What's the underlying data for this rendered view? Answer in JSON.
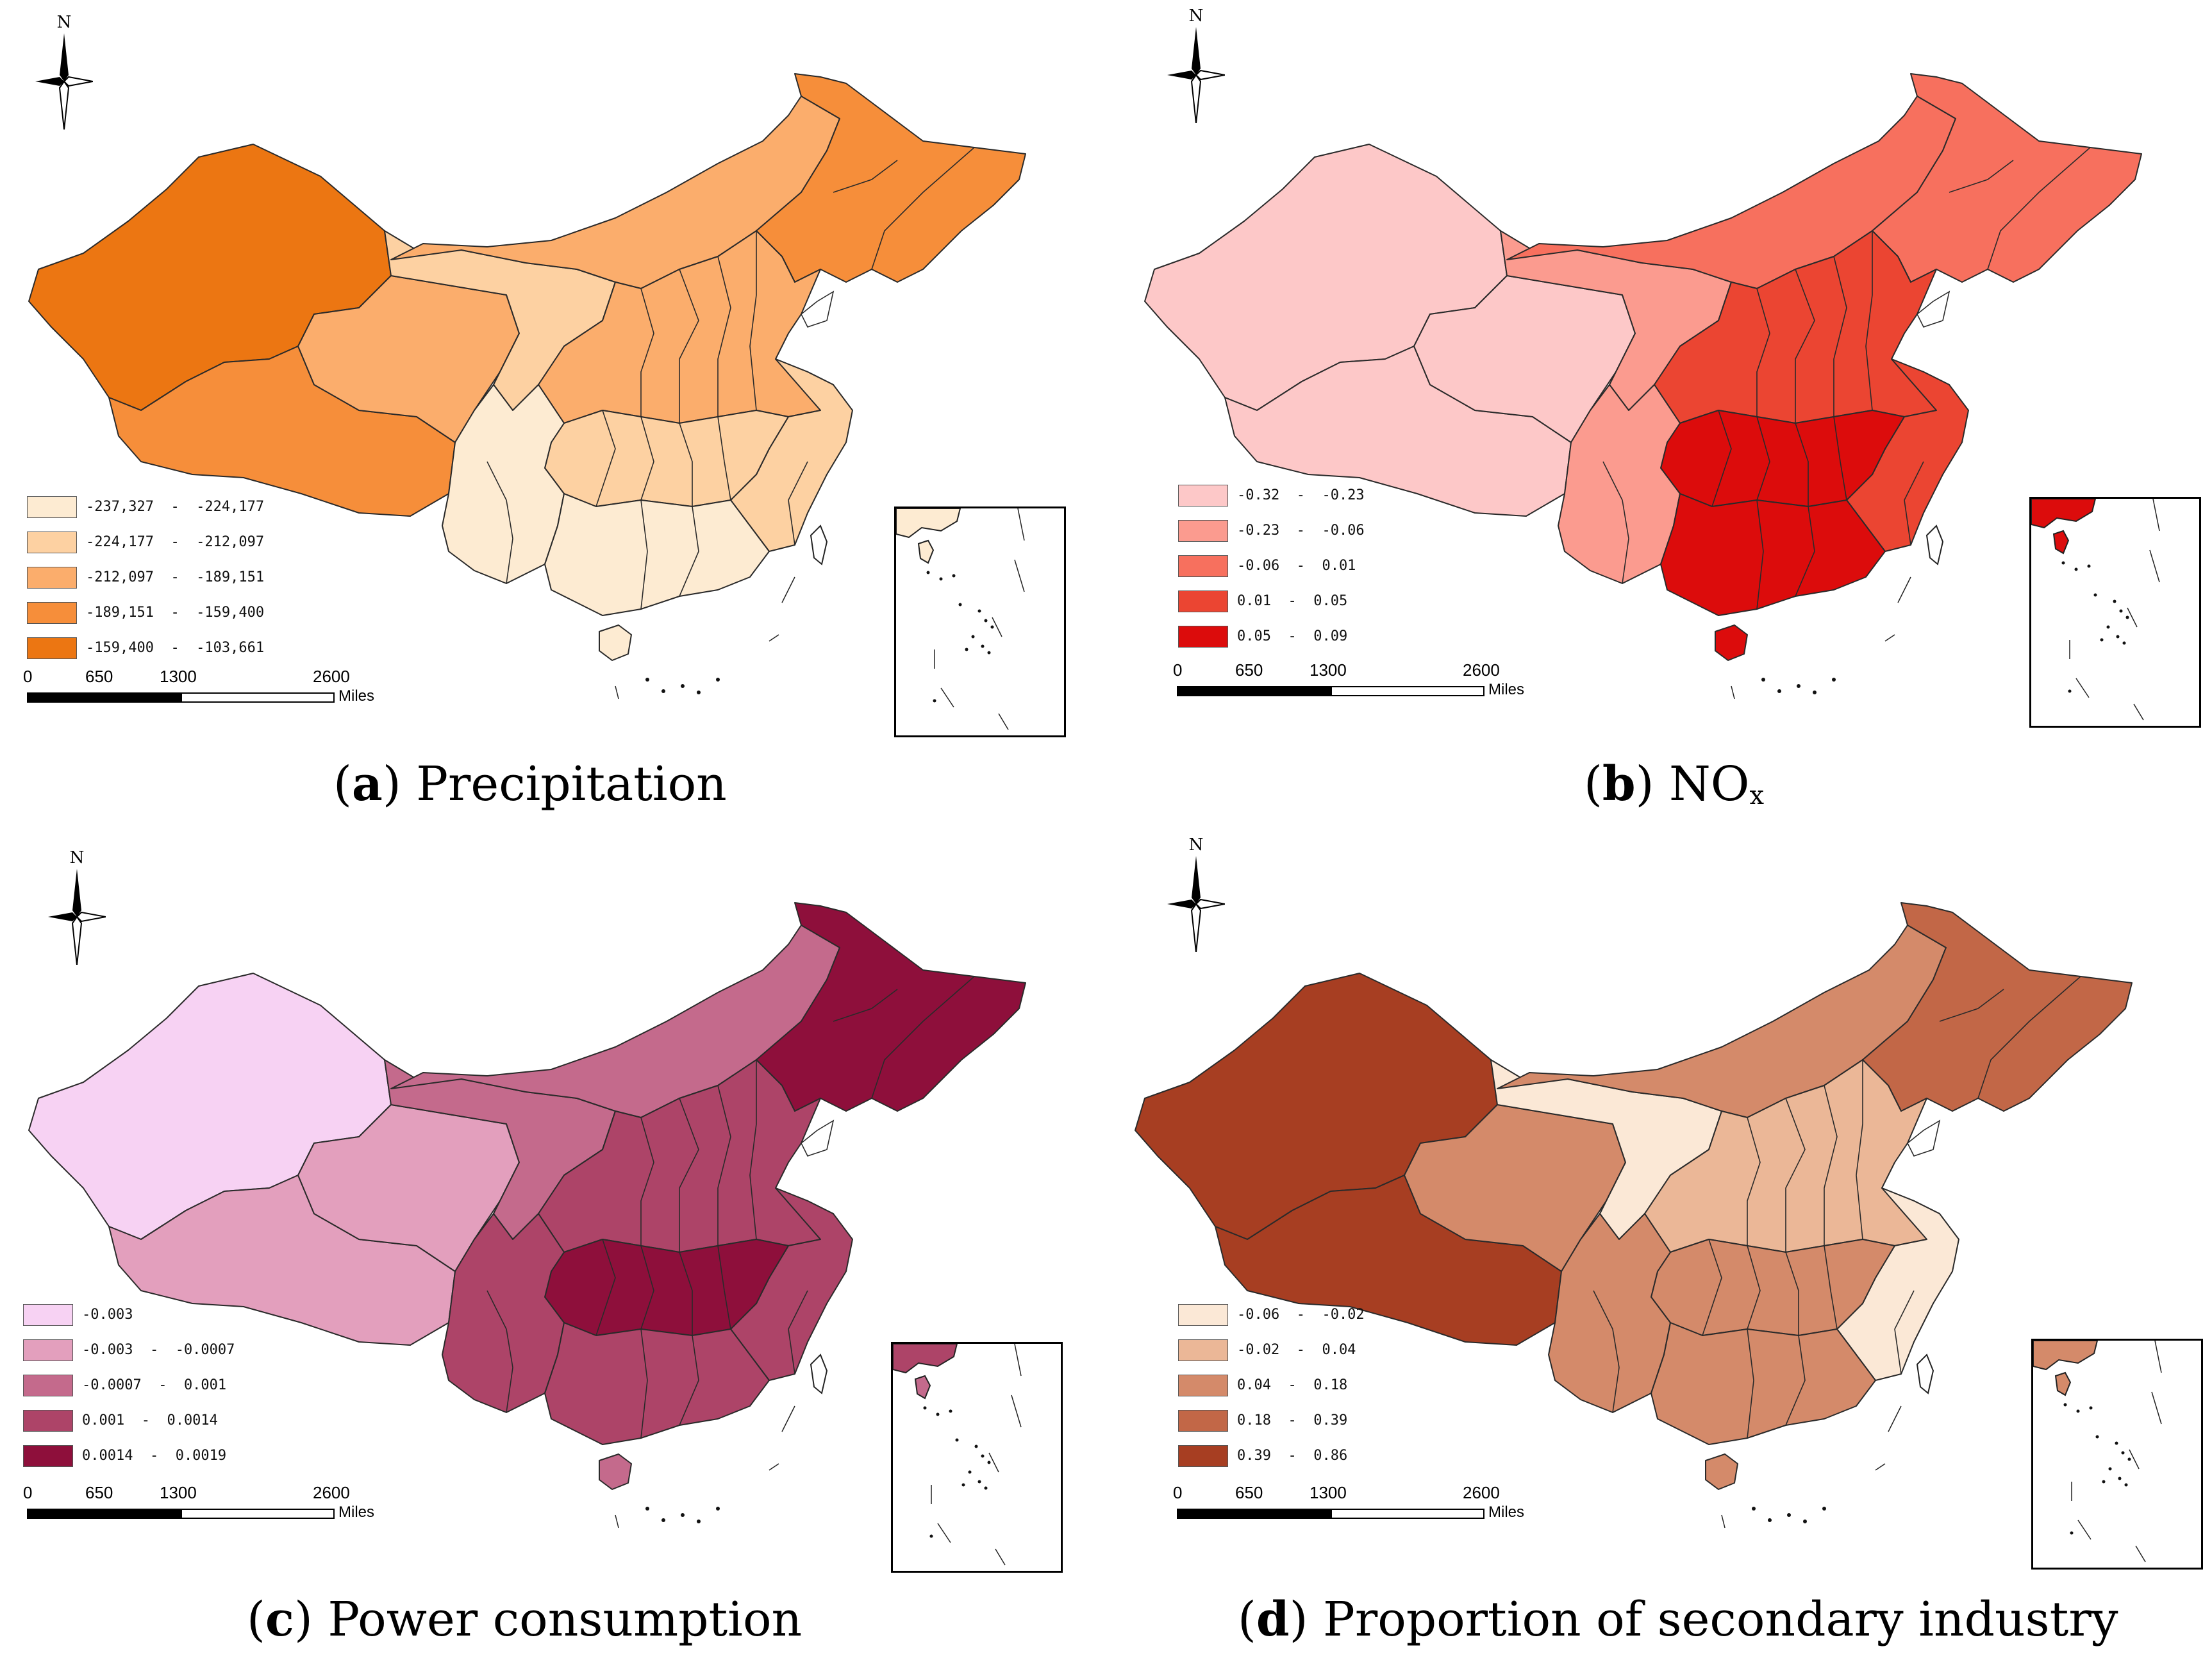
{
  "compass_letter": "N",
  "scale": {
    "ticks": [
      "0",
      "650",
      "1300",
      "2600"
    ],
    "unit": "Miles"
  },
  "panels": [
    {
      "id": "a",
      "caption_letter": "a",
      "caption_text": "Precipitation",
      "caption_subscript": "",
      "colors": [
        "#fdebd2",
        "#fdd1a2",
        "#fbad6c",
        "#f68e3a",
        "#ec7612"
      ],
      "legend": [
        "-237,327  -  -224,177",
        "-224,177  -  -212,097",
        "-212,097  -  -189,151",
        "-189,151  -  -159,400",
        "-159,400  -  -103,661"
      ],
      "regions": {
        "west": 4,
        "tibet": 3,
        "qinghai": 2,
        "gansu": 1,
        "neimenggu": 2,
        "northeast": 3,
        "north": 2,
        "central": 1,
        "southwest": 0,
        "south": 0,
        "east": 1,
        "hainan": 0
      }
    },
    {
      "id": "b",
      "caption_letter": "b",
      "caption_text": "NO",
      "caption_subscript": "x",
      "colors": [
        "#fdc8c8",
        "#fb9b8f",
        "#f7705e",
        "#eb4532",
        "#dc0c0c"
      ],
      "legend": [
        "-0.32  -  -0.23",
        "-0.23  -  -0.06",
        "-0.06  -  0.01",
        "0.01  -  0.05",
        "0.05  -  0.09"
      ],
      "regions": {
        "west": 0,
        "tibet": 0,
        "qinghai": 0,
        "gansu": 1,
        "neimenggu": 2,
        "northeast": 2,
        "north": 3,
        "central": 4,
        "southwest": 1,
        "south": 4,
        "east": 3,
        "hainan": 4
      }
    },
    {
      "id": "c",
      "caption_letter": "c",
      "caption_text": "Power consumption",
      "caption_subscript": "",
      "colors": [
        "#f7d2f3",
        "#e39fbd",
        "#c46a8c",
        "#ad4468",
        "#8e0f3b"
      ],
      "legend": [
        "-0.003",
        "-0.003  -  -0.0007",
        "-0.0007  -  0.001",
        "0.001  -  0.0014",
        "0.0014  -  0.0019"
      ],
      "regions": {
        "west": 0,
        "tibet": 1,
        "qinghai": 1,
        "gansu": 2,
        "neimenggu": 2,
        "northeast": 4,
        "north": 3,
        "central": 4,
        "southwest": 3,
        "south": 3,
        "east": 3,
        "hainan": 2
      }
    },
    {
      "id": "d",
      "caption_letter": "d",
      "caption_text": "Proportion of secondary industry",
      "caption_subscript": "",
      "colors": [
        "#fbe8d6",
        "#ebb797",
        "#d48a6a",
        "#c26747",
        "#a73e22"
      ],
      "legend": [
        "-0.06  -  -0.02",
        "-0.02  -  0.04",
        "0.04  -  0.18",
        "0.18  -  0.39",
        "0.39  -  0.86"
      ],
      "regions": {
        "west": 4,
        "tibet": 4,
        "qinghai": 2,
        "gansu": 0,
        "neimenggu": 2,
        "northeast": 3,
        "north": 1,
        "central": 2,
        "southwest": 2,
        "south": 2,
        "east": 0,
        "hainan": 2
      }
    }
  ]
}
